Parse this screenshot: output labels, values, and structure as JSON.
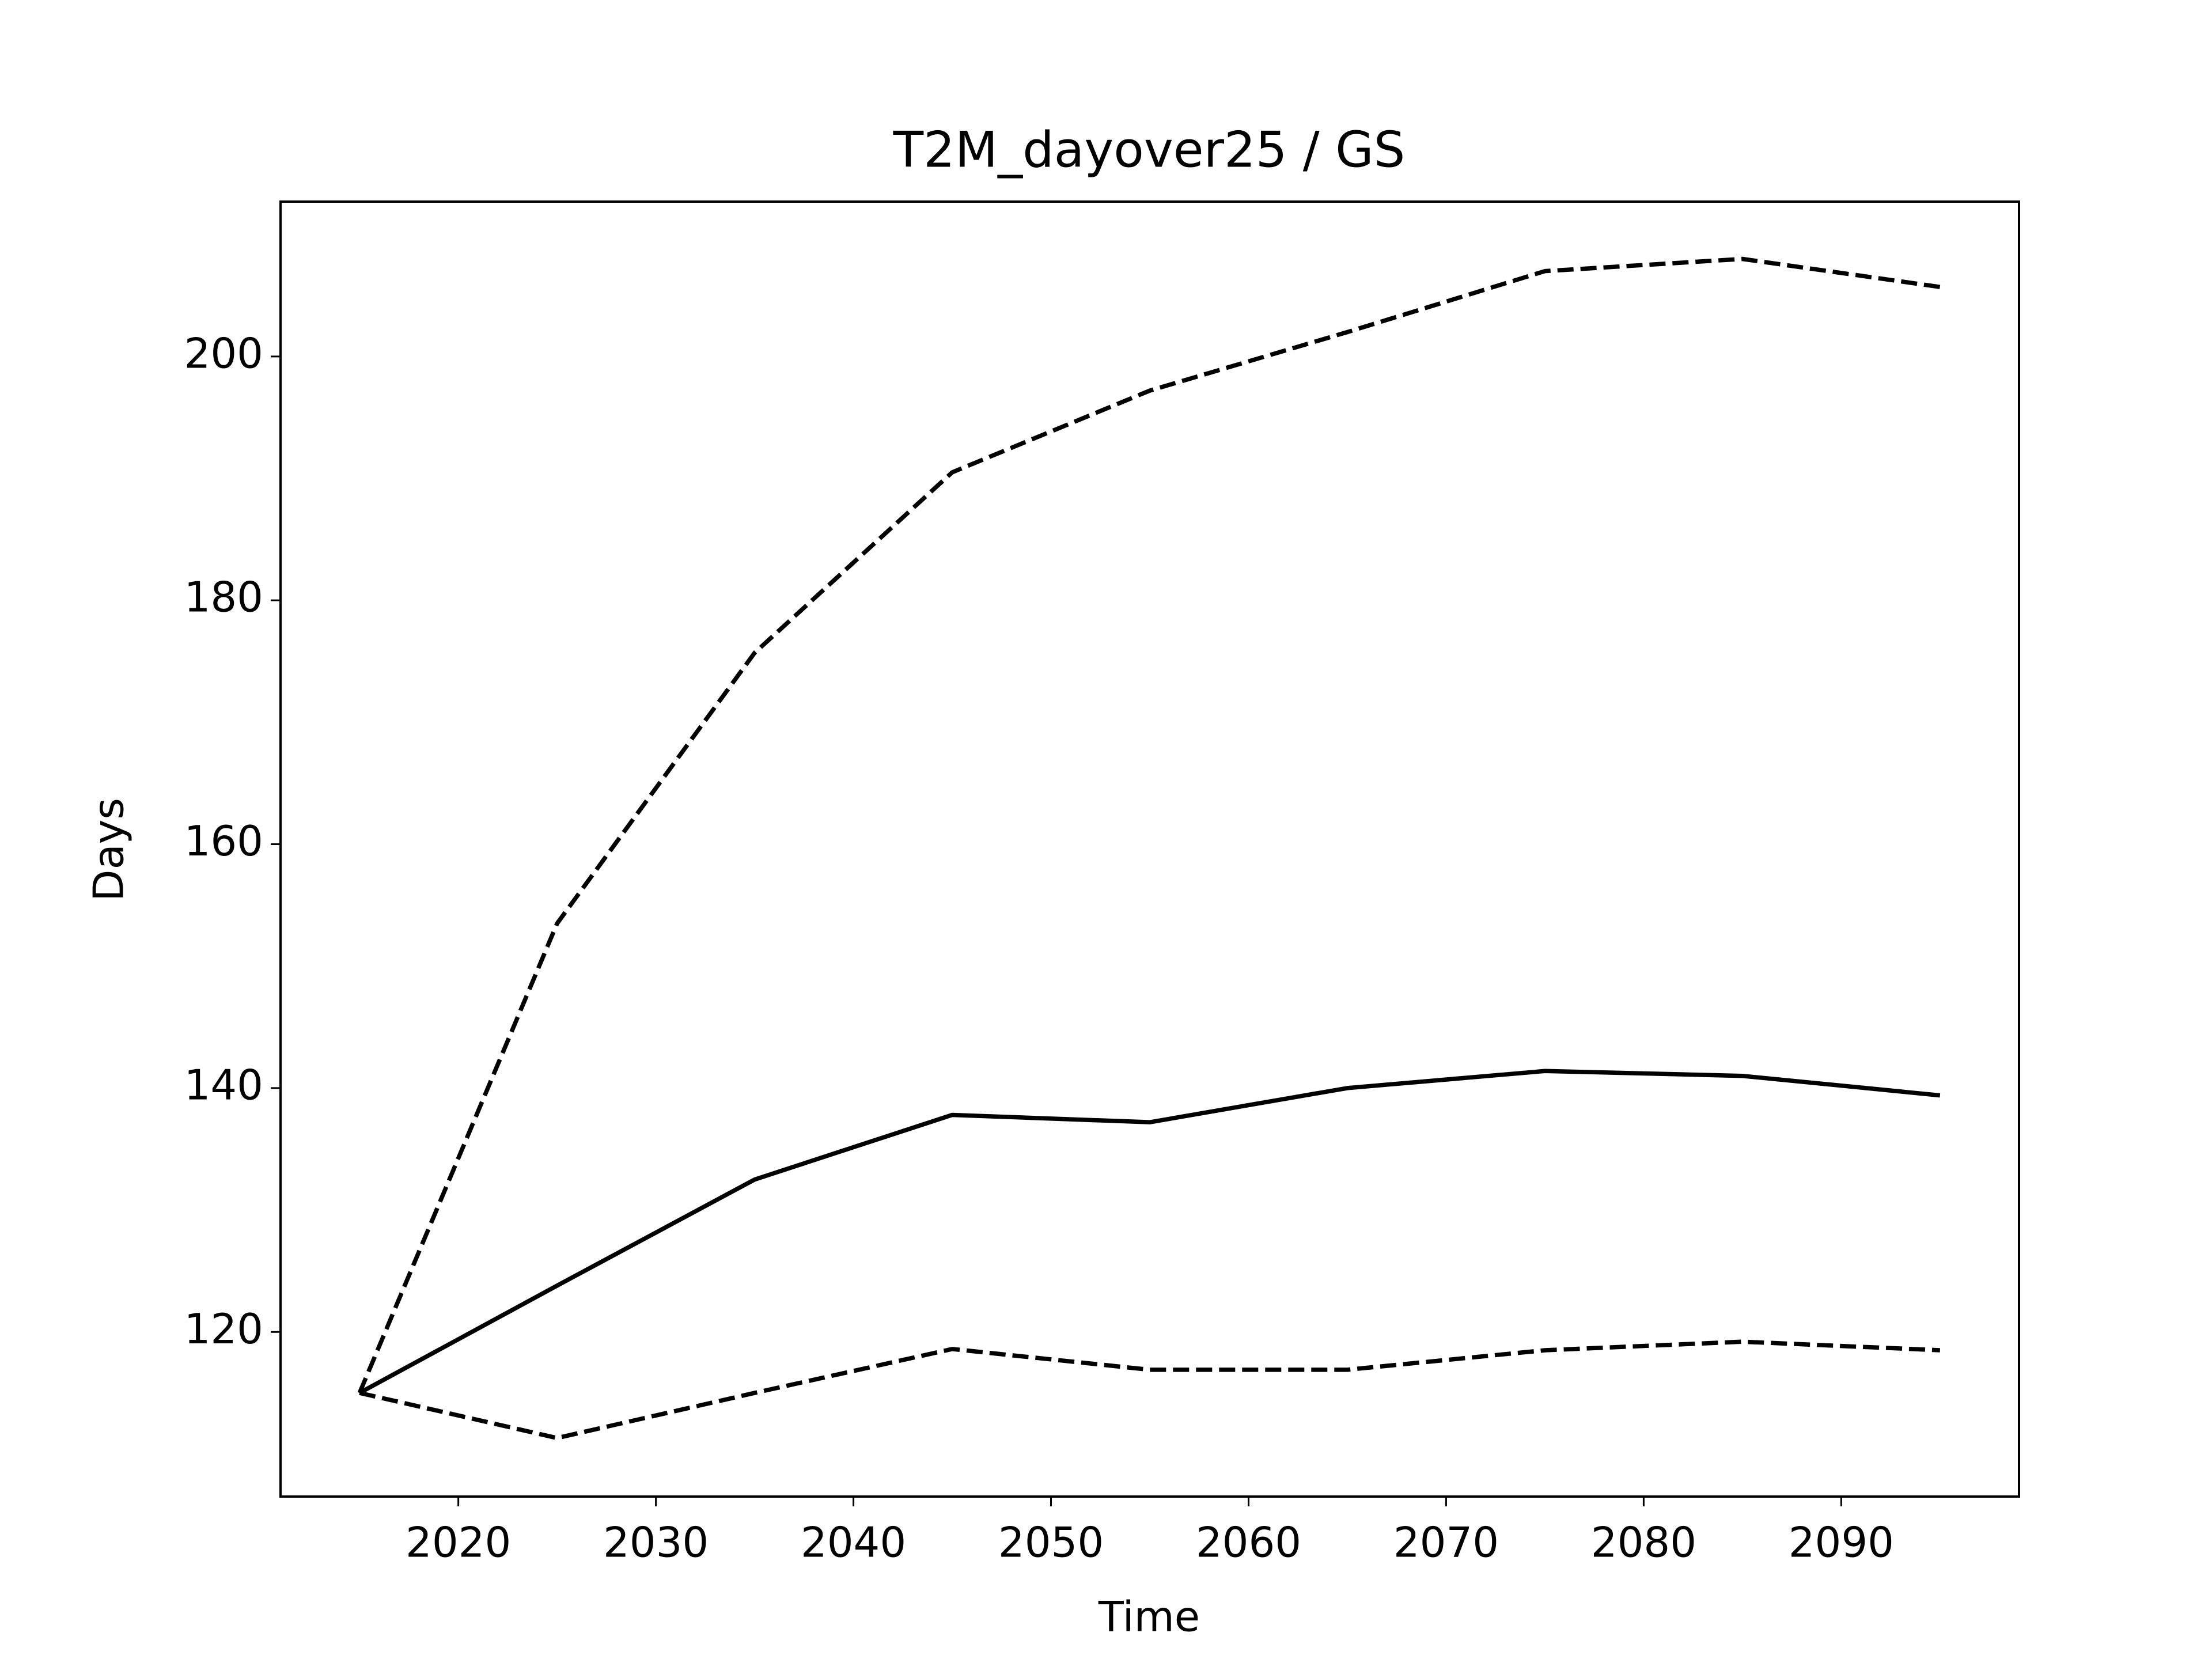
{
  "chart_data": {
    "type": "line",
    "title": "T2M_dayover25 / GS",
    "xlabel": "Time",
    "ylabel": "Days",
    "x": [
      2015,
      2025,
      2035,
      2045,
      2055,
      2065,
      2075,
      2085,
      2095
    ],
    "series": [
      {
        "color": "#000000",
        "style": "solid",
        "values": [
          115,
          123.8,
          132.5,
          137.8,
          137.2,
          140.0,
          141.4,
          141.0,
          139.4
        ]
      },
      {
        "color": "#000000",
        "style": "dashed",
        "values": [
          115,
          153.5,
          175.7,
          190.5,
          197.2,
          202.0,
          207.0,
          208.0,
          205.7
        ]
      },
      {
        "color": "#000000",
        "style": "dashed",
        "values": [
          115,
          111.3,
          115.0,
          118.6,
          116.9,
          116.9,
          118.5,
          119.2,
          118.5
        ]
      }
    ],
    "xlim": [
      2011,
      2099
    ],
    "xticks": [
      2020,
      2030,
      2040,
      2050,
      2060,
      2070,
      2080,
      2090
    ],
    "ylim": [
      106.5,
      212.7
    ],
    "yticks": [
      120,
      140,
      160,
      180,
      200
    ],
    "grid": false
  }
}
